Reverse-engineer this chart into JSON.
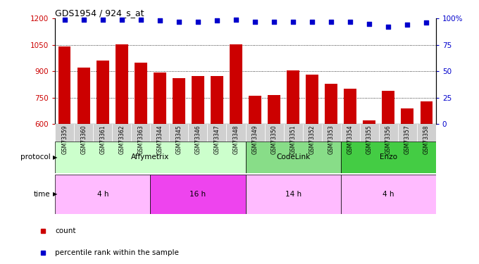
{
  "title": "GDS1954 / 924_s_at",
  "samples": [
    "GSM73359",
    "GSM73360",
    "GSM73361",
    "GSM73362",
    "GSM73363",
    "GSM73344",
    "GSM73345",
    "GSM73346",
    "GSM73347",
    "GSM73348",
    "GSM73349",
    "GSM73350",
    "GSM73351",
    "GSM73352",
    "GSM73353",
    "GSM73354",
    "GSM73355",
    "GSM73356",
    "GSM73357",
    "GSM73358"
  ],
  "counts": [
    1040,
    920,
    960,
    1055,
    950,
    895,
    860,
    875,
    875,
    1055,
    760,
    765,
    905,
    880,
    830,
    800,
    620,
    790,
    690,
    730
  ],
  "percentile_ranks": [
    99,
    99,
    99,
    99,
    99,
    98,
    97,
    97,
    98,
    99,
    97,
    97,
    97,
    97,
    97,
    97,
    95,
    92,
    94,
    96
  ],
  "ylim_left": [
    600,
    1200
  ],
  "ylim_right": [
    0,
    100
  ],
  "yticks_left": [
    600,
    750,
    900,
    1050,
    1200
  ],
  "yticks_right": [
    0,
    25,
    50,
    75,
    100
  ],
  "bar_color": "#cc0000",
  "dot_color": "#0000cc",
  "background_color": "#ffffff",
  "plot_bg_color": "#ffffff",
  "xticklabel_bg": "#d0d0d0",
  "protocol_colors": [
    "#ccffcc",
    "#88dd88",
    "#44cc44"
  ],
  "time_colors_light": "#ffbbff",
  "time_colors_bright": "#ee44ee",
  "protocol_groups": [
    {
      "label": "Affymetrix",
      "start": 0,
      "end": 9,
      "color": "#ccffcc"
    },
    {
      "label": "CodeLink",
      "start": 10,
      "end": 14,
      "color": "#88dd88"
    },
    {
      "label": "Enzo",
      "start": 15,
      "end": 19,
      "color": "#44cc44"
    }
  ],
  "time_groups": [
    {
      "label": "4 h",
      "start": 0,
      "end": 4,
      "color": "#ffbbff"
    },
    {
      "label": "16 h",
      "start": 5,
      "end": 9,
      "color": "#ee44ee"
    },
    {
      "label": "14 h",
      "start": 10,
      "end": 14,
      "color": "#ffbbff"
    },
    {
      "label": "4 h",
      "start": 15,
      "end": 19,
      "color": "#ffbbff"
    }
  ],
  "legend_items": [
    {
      "label": "count",
      "color": "#cc0000"
    },
    {
      "label": "percentile rank within the sample",
      "color": "#0000cc"
    }
  ],
  "grid_lines": [
    750,
    900,
    1050
  ],
  "n_samples": 20
}
